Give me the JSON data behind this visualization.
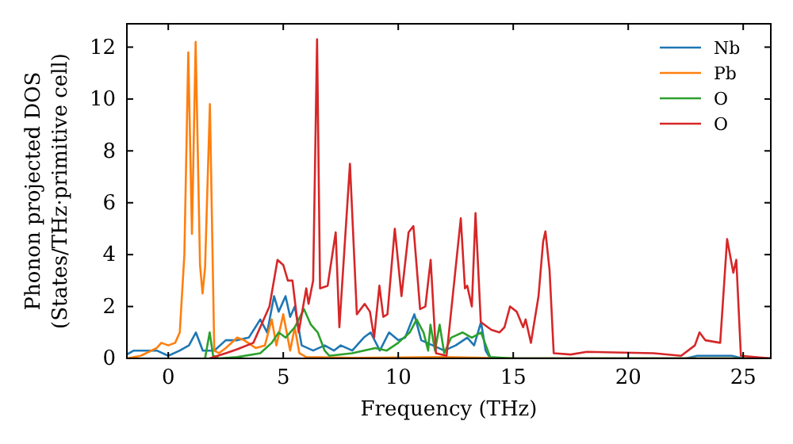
{
  "chart_data": {
    "type": "line",
    "xlabel": "Frequency (THz)",
    "ylabel": "Phonon projected DOS\n(States/THz·primitive cell)",
    "xlim": [
      -1.8,
      26.2
    ],
    "ylim": [
      0,
      12.9
    ],
    "xticks": [
      0,
      5,
      10,
      15,
      20,
      25
    ],
    "yticks": [
      0,
      2,
      4,
      6,
      8,
      10,
      12
    ],
    "grid": false,
    "legend": "top right",
    "series": [
      {
        "name": "Nb",
        "color": "#1f77b4",
        "x": [
          -1.8,
          -1.5,
          -0.5,
          0,
          0.5,
          0.9,
          1.2,
          1.5,
          2,
          2.5,
          3,
          3.5,
          4,
          4.3,
          4.6,
          4.8,
          5.1,
          5.3,
          5.5,
          5.8,
          6.3,
          6.8,
          7.2,
          7.5,
          8,
          8.5,
          8.8,
          9.2,
          9.6,
          10,
          10.3,
          10.7,
          11,
          11.5,
          12,
          12.5,
          13,
          13.3,
          13.6,
          13.8,
          14,
          22.5,
          23,
          24.5,
          25,
          26.2
        ],
        "values": [
          0.15,
          0.3,
          0.3,
          0.1,
          0.3,
          0.5,
          1.0,
          0.3,
          0.3,
          0.7,
          0.7,
          0.8,
          1.5,
          1.0,
          2.4,
          1.8,
          2.4,
          1.6,
          2.0,
          0.5,
          0.3,
          0.5,
          0.3,
          0.5,
          0.3,
          0.8,
          1.0,
          0.3,
          1.0,
          0.7,
          0.8,
          1.7,
          0.7,
          0.5,
          0.3,
          0.5,
          0.8,
          0.5,
          1.4,
          0.3,
          0,
          0,
          0.1,
          0.1,
          0,
          0
        ]
      },
      {
        "name": "Pb",
        "color": "#ff7f0e",
        "x": [
          -1.8,
          -1.2,
          -0.5,
          -0.3,
          0,
          0.3,
          0.5,
          0.7,
          0.87,
          1.03,
          1.19,
          1.38,
          1.49,
          1.6,
          1.81,
          2.0,
          2.2,
          2.5,
          3,
          3.3,
          3.8,
          4.2,
          4.5,
          4.7,
          5,
          5.3,
          5.5,
          5.7,
          6,
          8,
          12,
          15,
          26.2
        ],
        "values": [
          0,
          0.1,
          0.4,
          0.6,
          0.5,
          0.6,
          1.0,
          4,
          11.8,
          4.8,
          12.2,
          3.6,
          2.5,
          3.5,
          9.8,
          0.3,
          0.2,
          0.4,
          0.8,
          0.7,
          0.4,
          0.5,
          1.5,
          0.5,
          1.7,
          0.3,
          1.2,
          0.2,
          0.05,
          0.02,
          0.05,
          0,
          0
        ]
      },
      {
        "name": "O",
        "color": "#2ca02c",
        "x": [
          1.6,
          1.8,
          1.95,
          2.2,
          3,
          4,
          4.5,
          4.8,
          5.1,
          5.5,
          5.9,
          6.2,
          6.5,
          6.8,
          7,
          8,
          9,
          9.5,
          10,
          10.5,
          10.8,
          11.1,
          11.3,
          11.4,
          11.6,
          11.8,
          12,
          12.3,
          12.8,
          13.2,
          13.6,
          14,
          15,
          26.2
        ],
        "values": [
          0,
          1.0,
          0.1,
          0,
          0.05,
          0.2,
          0.6,
          1.0,
          0.8,
          1.2,
          1.9,
          1.3,
          1.0,
          0.3,
          0.1,
          0.2,
          0.4,
          0.3,
          0.6,
          1.0,
          1.5,
          1.0,
          0.3,
          1.3,
          0.3,
          1.3,
          0.2,
          0.8,
          1.0,
          0.8,
          1.0,
          0.05,
          0,
          0
        ]
      },
      {
        "name": "O",
        "color": "#d62728",
        "x": [
          1.8,
          2.5,
          3,
          3.7,
          4.4,
          4.75,
          5.0,
          5.2,
          5.4,
          5.67,
          6.0,
          6.1,
          6.3,
          6.47,
          6.6,
          6.93,
          7.28,
          7.44,
          7.9,
          8.2,
          8.54,
          8.77,
          8.95,
          9.18,
          9.35,
          9.53,
          9.85,
          10.14,
          10.45,
          10.66,
          10.95,
          11.18,
          11.41,
          11.64,
          12.1,
          12.72,
          12.9,
          13.0,
          13.2,
          13.36,
          13.59,
          14.05,
          14.4,
          14.62,
          14.86,
          15.15,
          15.43,
          15.54,
          15.77,
          16.1,
          16.3,
          16.4,
          16.58,
          16.76,
          17.5,
          18.2,
          21.1,
          22.3,
          22.9,
          23.1,
          23.35,
          24.0,
          24.3,
          24.57,
          24.7,
          24.9,
          26.2
        ],
        "values": [
          0,
          0.2,
          0.35,
          0.6,
          2.0,
          3.8,
          3.6,
          3.0,
          3.0,
          1.0,
          2.7,
          2.1,
          3.0,
          12.3,
          2.7,
          2.8,
          4.86,
          1.2,
          7.5,
          1.7,
          2.1,
          1.8,
          0.8,
          2.8,
          1.6,
          1.7,
          5.0,
          2.4,
          4.86,
          5.1,
          1.9,
          2.0,
          3.8,
          0.2,
          0.1,
          5.4,
          2.7,
          2.8,
          2.0,
          5.6,
          1.4,
          1.1,
          1.0,
          1.2,
          2.0,
          1.8,
          1.2,
          1.5,
          0.6,
          2.4,
          4.5,
          4.9,
          3.4,
          0.2,
          0.15,
          0.25,
          0.2,
          0.1,
          0.5,
          1.0,
          0.7,
          0.6,
          4.6,
          3.3,
          3.8,
          0.1,
          0
        ]
      }
    ]
  }
}
